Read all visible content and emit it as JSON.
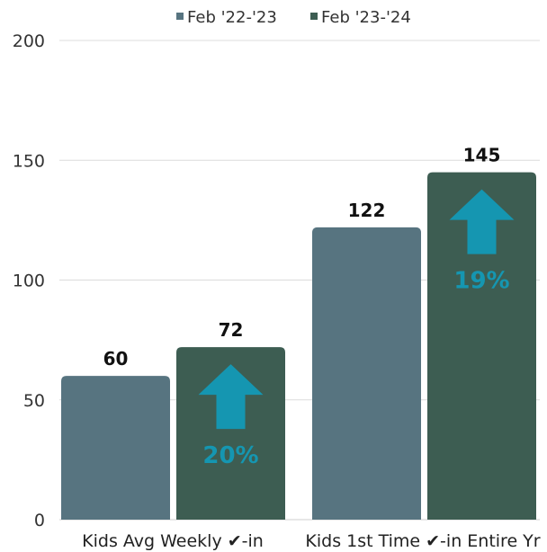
{
  "chart_data": {
    "type": "bar",
    "categories": [
      "Kids Avg Weekly ✔-in",
      "Kids 1st Time ✔-in Entire Yr"
    ],
    "series": [
      {
        "name": "Feb '22-'23",
        "values": [
          60,
          122
        ],
        "color": "#577480"
      },
      {
        "name": "Feb '23-'24",
        "values": [
          72,
          145
        ],
        "color": "#3d5d52"
      }
    ],
    "annotations": [
      {
        "category_index": 0,
        "series_index": 1,
        "text": "20%",
        "icon": "up-arrow-icon"
      },
      {
        "category_index": 1,
        "series_index": 1,
        "text": "19%",
        "icon": "up-arrow-icon"
      }
    ],
    "title": "",
    "xlabel": "",
    "ylabel": "",
    "ylim": [
      0,
      200
    ],
    "yticks": [
      0,
      50,
      100,
      150,
      200
    ],
    "grid": true,
    "legend_position": "top-center",
    "accent_color": "#1596b1"
  }
}
